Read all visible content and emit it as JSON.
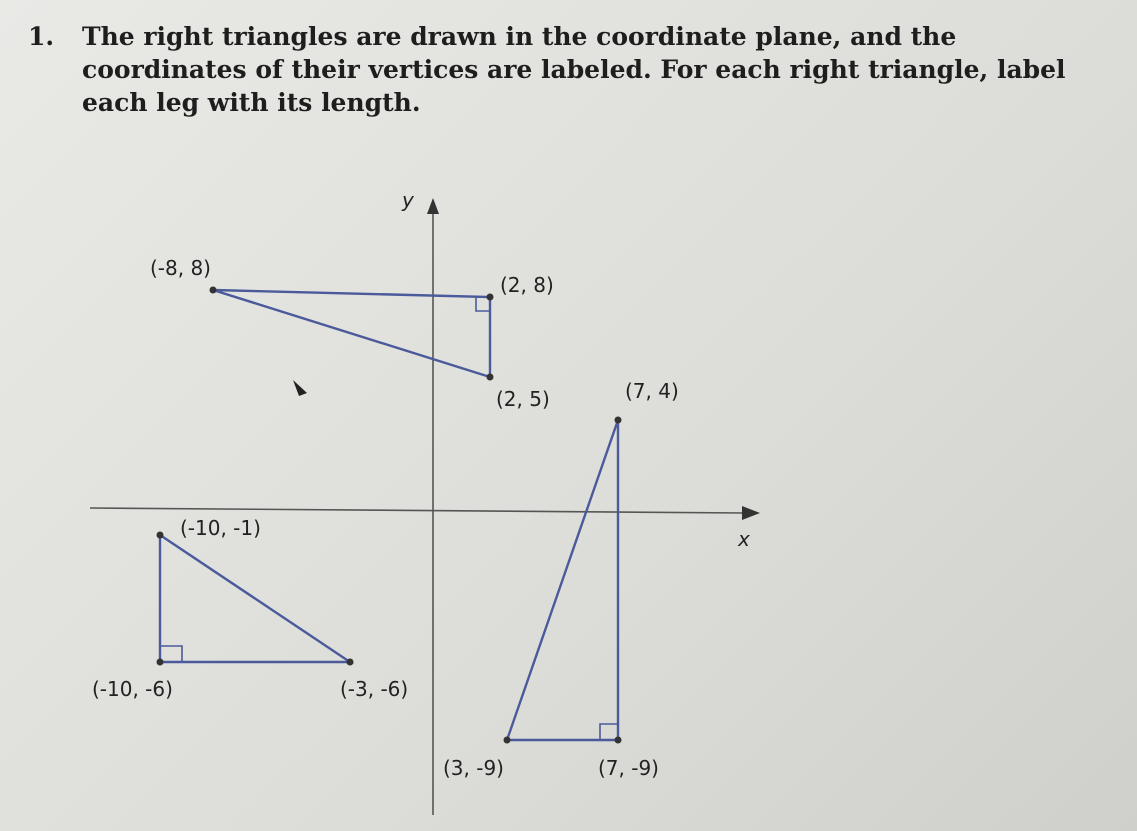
{
  "problem": {
    "number": "1.",
    "text": "The right triangles are drawn in the coordinate plane, and the coordinates of their vertices are labeled. For each right triangle, label each leg with its length."
  },
  "axes": {
    "x_label": "x",
    "y_label": "y"
  },
  "triangles": [
    {
      "vertices": [
        "(-8, 8)",
        "(2, 8)",
        "(2, 5)"
      ]
    },
    {
      "vertices": [
        "(7, 4)",
        "(3, -9)",
        "(7, -9)"
      ]
    },
    {
      "vertices": [
        "(-10, -1)",
        "(-10, -6)",
        "(-3, -6)"
      ]
    }
  ]
}
